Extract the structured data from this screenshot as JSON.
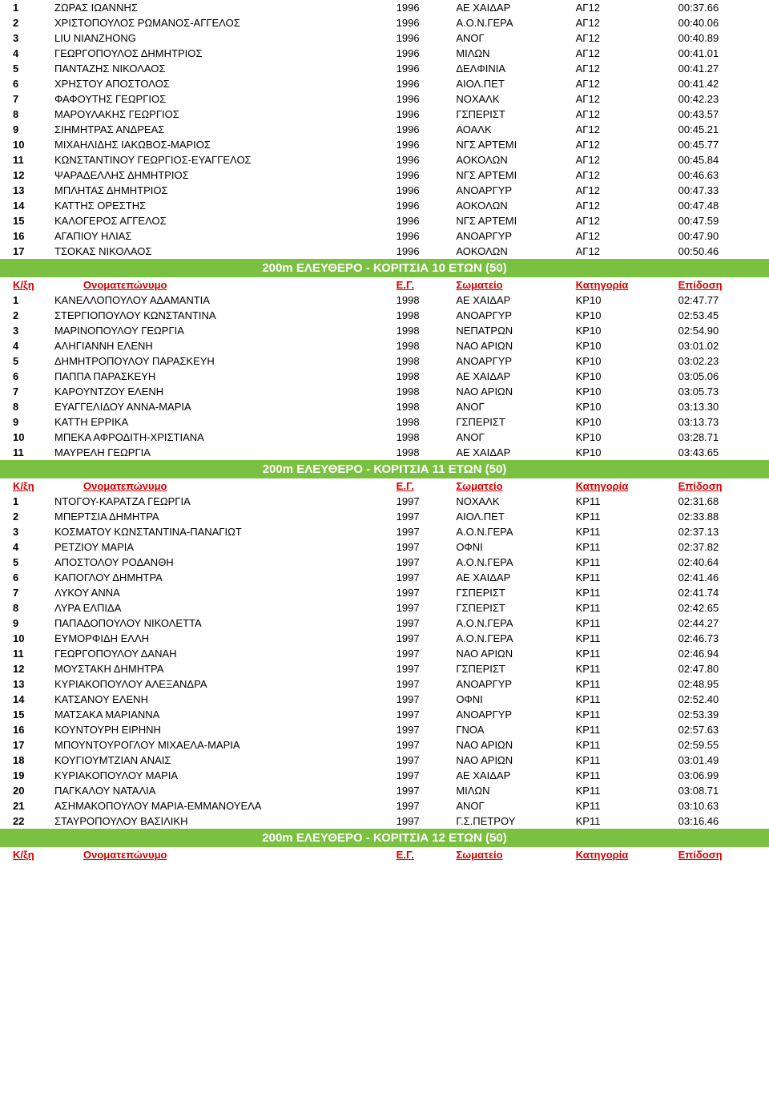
{
  "header_labels": {
    "rank": "Κ/ξη",
    "name": "Ονοματεπώνυμο",
    "year": "Ε.Γ.",
    "club": "Σωματείο",
    "category": "Κατηγορία",
    "time": "Επίδοση"
  },
  "styles": {
    "banner_bg": "#7ac142",
    "banner_fg": "#ffffff",
    "header_fg": "#d60000",
    "body_bg": "#ffffff",
    "body_fg": "#000000",
    "font_family": "Verdana, Arial, sans-serif",
    "font_size_pt": 10,
    "banner_font_size_pt": 11
  },
  "sections": [
    {
      "rows": [
        {
          "rank": "1",
          "name": "ΖΩΡΑΣ ΙΩΑΝΝΗΣ",
          "year": "1996",
          "club": "ΑΕ ΧΑΙΔΑΡ",
          "cat": "ΑΓ12",
          "time": "00:37.66"
        },
        {
          "rank": "2",
          "name": "ΧΡΙΣΤΟΠΟΥΛΟΣ ΡΩΜΑΝΟΣ-ΑΓΓΕΛΟΣ",
          "year": "1996",
          "club": "Α.Ο.Ν.ΓΕΡΑ",
          "cat": "ΑΓ12",
          "time": "00:40.06"
        },
        {
          "rank": "3",
          "name": "LIU NIANZHONG",
          "year": "1996",
          "club": "ΑΝΟΓ",
          "cat": "ΑΓ12",
          "time": "00:40.89"
        },
        {
          "rank": "4",
          "name": "ΓΕΩΡΓΟΠΟΥΛΟΣ ΔΗΜΗΤΡΙΟΣ",
          "year": "1996",
          "club": "ΜΙΛΩΝ",
          "cat": "ΑΓ12",
          "time": "00:41.01"
        },
        {
          "rank": "5",
          "name": "ΠΑΝΤΑΖΗΣ ΝΙΚΟΛΑΟΣ",
          "year": "1996",
          "club": "ΔΕΛΦΙΝΙΑ",
          "cat": "ΑΓ12",
          "time": "00:41.27"
        },
        {
          "rank": "6",
          "name": "ΧΡΗΣΤΟΥ ΑΠΟΣΤΟΛΟΣ",
          "year": "1996",
          "club": "ΑΙΟΛ.ΠΕΤ",
          "cat": "ΑΓ12",
          "time": "00:41.42"
        },
        {
          "rank": "7",
          "name": "ΦΑΦΟΥΤΗΣ ΓΕΩΡΓΙΟΣ",
          "year": "1996",
          "club": "ΝΟΧΑΛΚ",
          "cat": "ΑΓ12",
          "time": "00:42.23"
        },
        {
          "rank": "8",
          "name": "ΜΑΡΟΥΛΑΚΗΣ ΓΕΩΡΓΙΟΣ",
          "year": "1996",
          "club": "ΓΣΠΕΡΙΣΤ",
          "cat": "ΑΓ12",
          "time": "00:43.57"
        },
        {
          "rank": "9",
          "name": "ΣΙΗΜΗΤΡΑΣ ΑΝΔΡΕΑΣ",
          "year": "1996",
          "club": "ΑΟΑΛΚ",
          "cat": "ΑΓ12",
          "time": "00:45.21"
        },
        {
          "rank": "10",
          "name": "ΜΙΧΑΗΛΙΔΗΣ ΙΑΚΩΒΟΣ-ΜΑΡΙΟΣ",
          "year": "1996",
          "club": "ΝΓΣ ΑΡΤΕΜΙ",
          "cat": "ΑΓ12",
          "time": "00:45.77"
        },
        {
          "rank": "11",
          "name": "ΚΩΝΣΤΑΝΤΙΝΟΥ ΓΕΩΡΓΙΟΣ-ΕΥΑΓΓΕΛΟΣ",
          "year": "1996",
          "club": "ΑΟΚΟΛΩΝ",
          "cat": "ΑΓ12",
          "time": "00:45.84"
        },
        {
          "rank": "12",
          "name": "ΨΑΡΑΔΕΛΛΗΣ ΔΗΜΗΤΡΙΟΣ",
          "year": "1996",
          "club": "ΝΓΣ ΑΡΤΕΜΙ",
          "cat": "ΑΓ12",
          "time": "00:46.63"
        },
        {
          "rank": "13",
          "name": "ΜΠΛΗΤΑΣ ΔΗΜΗΤΡΙΟΣ",
          "year": "1996",
          "club": "ΑΝΟΑΡΓΥΡ",
          "cat": "ΑΓ12",
          "time": "00:47.33"
        },
        {
          "rank": "14",
          "name": "ΚΑΤΤΗΣ ΟΡΕΣΤΗΣ",
          "year": "1996",
          "club": "ΑΟΚΟΛΩΝ",
          "cat": "ΑΓ12",
          "time": "00:47.48"
        },
        {
          "rank": "15",
          "name": "ΚΑΛΟΓΕΡΟΣ ΑΓΓΕΛΟΣ",
          "year": "1996",
          "club": "ΝΓΣ ΑΡΤΕΜΙ",
          "cat": "ΑΓ12",
          "time": "00:47.59"
        },
        {
          "rank": "16",
          "name": "ΑΓΑΠΙΟΥ ΗΛΙΑΣ",
          "year": "1996",
          "club": "ΑΝΟΑΡΓΥΡ",
          "cat": "ΑΓ12",
          "time": "00:47.90"
        },
        {
          "rank": "17",
          "name": "ΤΣΟΚΑΣ ΝΙΚΟΛΑΟΣ",
          "year": "1996",
          "club": "ΑΟΚΟΛΩΝ",
          "cat": "ΑΓ12",
          "time": "00:50.46"
        }
      ]
    },
    {
      "banner": "200m ΕΛΕΥΘΕΡΟ - ΚΟΡΙΤΣΙΑ 10 ΕΤΩΝ  (50)",
      "show_header": true,
      "rows": [
        {
          "rank": "1",
          "name": "ΚΑΝΕΛΛΟΠΟΥΛΟΥ ΑΔΑΜΑΝΤΙΑ",
          "year": "1998",
          "club": "ΑΕ ΧΑΙΔΑΡ",
          "cat": "ΚΡ10",
          "time": "02:47.77"
        },
        {
          "rank": "2",
          "name": "ΣΤΕΡΓΙΟΠΟΥΛΟΥ ΚΩΝΣΤΑΝΤΙΝΑ",
          "year": "1998",
          "club": "ΑΝΟΑΡΓΥΡ",
          "cat": "ΚΡ10",
          "time": "02:53.45"
        },
        {
          "rank": "3",
          "name": "ΜΑΡΙΝΟΠΟΥΛΟΥ ΓΕΩΡΓΙΑ",
          "year": "1998",
          "club": "ΝΕΠΑΤΡΩΝ",
          "cat": "ΚΡ10",
          "time": "02:54.90"
        },
        {
          "rank": "4",
          "name": "ΑΛΗΓΙΑΝΝΗ ΕΛΕΝΗ",
          "year": "1998",
          "club": "ΝΑΟ ΑΡΙΩΝ",
          "cat": "ΚΡ10",
          "time": "03:01.02"
        },
        {
          "rank": "5",
          "name": "ΔΗΜΗΤΡΟΠΟΥΛΟΥ ΠΑΡΑΣΚΕΥΗ",
          "year": "1998",
          "club": "ΑΝΟΑΡΓΥΡ",
          "cat": "ΚΡ10",
          "time": "03:02.23"
        },
        {
          "rank": "6",
          "name": "ΠΑΠΠΑ ΠΑΡΑΣΚΕΥΗ",
          "year": "1998",
          "club": "ΑΕ ΧΑΙΔΑΡ",
          "cat": "ΚΡ10",
          "time": "03:05.06"
        },
        {
          "rank": "7",
          "name": "ΚΑΡΟΥΝΤΖΟΥ ΕΛΕΝΗ",
          "year": "1998",
          "club": "ΝΑΟ ΑΡΙΩΝ",
          "cat": "ΚΡ10",
          "time": "03:05.73"
        },
        {
          "rank": "8",
          "name": "ΕΥΑΓΓΕΛΙΔΟΥ ΑΝΝΑ-ΜΑΡΙΑ",
          "year": "1998",
          "club": "ΑΝΟΓ",
          "cat": "ΚΡ10",
          "time": "03:13.30"
        },
        {
          "rank": "9",
          "name": "ΚΑΤΤΗ ΕΡΡΙΚΑ",
          "year": "1998",
          "club": "ΓΣΠΕΡΙΣΤ",
          "cat": "ΚΡ10",
          "time": "03:13.73"
        },
        {
          "rank": "10",
          "name": "ΜΠΕΚΑ ΑΦΡΟΔΙΤΗ-ΧΡΙΣΤΙΑΝΑ",
          "year": "1998",
          "club": "ΑΝΟΓ",
          "cat": "ΚΡ10",
          "time": "03:28.71"
        },
        {
          "rank": "11",
          "name": "ΜΑΥΡΕΛΗ ΓΕΩΡΓΙΑ",
          "year": "1998",
          "club": "ΑΕ ΧΑΙΔΑΡ",
          "cat": "ΚΡ10",
          "time": "03:43.65"
        }
      ]
    },
    {
      "banner": "200m ΕΛΕΥΘΕΡΟ - ΚΟΡΙΤΣΙΑ 11 ΕΤΩΝ  (50)",
      "show_header": true,
      "rows": [
        {
          "rank": "1",
          "name": "ΝΤΟΓΟΥ-ΚΑΡΑΤΖΑ ΓΕΩΡΓΙΑ",
          "year": "1997",
          "club": "ΝΟΧΑΛΚ",
          "cat": "ΚΡ11",
          "time": "02:31.68"
        },
        {
          "rank": "2",
          "name": "ΜΠΕΡΤΣΙΑ ΔΗΜΗΤΡΑ",
          "year": "1997",
          "club": "ΑΙΟΛ.ΠΕΤ",
          "cat": "ΚΡ11",
          "time": "02:33.88"
        },
        {
          "rank": "3",
          "name": "ΚΟΣΜΑΤΟΥ ΚΩΝΣΤΑΝΤΙΝΑ-ΠΑΝΑΓΙΩΤ",
          "year": "1997",
          "club": "Α.Ο.Ν.ΓΕΡΑ",
          "cat": "ΚΡ11",
          "time": "02:37.13"
        },
        {
          "rank": "4",
          "name": "ΡΕΤΖΙΟΥ ΜΑΡΙΑ",
          "year": "1997",
          "club": "ΟΦΝΙ",
          "cat": "ΚΡ11",
          "time": "02:37.82"
        },
        {
          "rank": "5",
          "name": "ΑΠΟΣΤΟΛΟΥ ΡΟΔΑΝΘΗ",
          "year": "1997",
          "club": "Α.Ο.Ν.ΓΕΡΑ",
          "cat": "ΚΡ11",
          "time": "02:40.64"
        },
        {
          "rank": "6",
          "name": "ΚΑΠΟΓΛΟΥ ΔΗΜΗΤΡΑ",
          "year": "1997",
          "club": "ΑΕ ΧΑΙΔΑΡ",
          "cat": "ΚΡ11",
          "time": "02:41.46"
        },
        {
          "rank": "7",
          "name": "ΛΥΚΟΥ ΑΝΝΑ",
          "year": "1997",
          "club": "ΓΣΠΕΡΙΣΤ",
          "cat": "ΚΡ11",
          "time": "02:41.74"
        },
        {
          "rank": "8",
          "name": "ΛΥΡΑ ΕΛΠΙΔΑ",
          "year": "1997",
          "club": "ΓΣΠΕΡΙΣΤ",
          "cat": "ΚΡ11",
          "time": "02:42.65"
        },
        {
          "rank": "9",
          "name": "ΠΑΠΑΔΟΠΟΥΛΟΥ ΝΙΚΟΛΕΤΤΑ",
          "year": "1997",
          "club": "Α.Ο.Ν.ΓΕΡΑ",
          "cat": "ΚΡ11",
          "time": "02:44.27"
        },
        {
          "rank": "10",
          "name": "ΕΥΜΟΡΦΙΔΗ ΕΛΛΗ",
          "year": "1997",
          "club": "Α.Ο.Ν.ΓΕΡΑ",
          "cat": "ΚΡ11",
          "time": "02:46.73"
        },
        {
          "rank": "11",
          "name": "ΓΕΩΡΓΟΠΟΥΛΟΥ ΔΑΝΑΗ",
          "year": "1997",
          "club": "ΝΑΟ ΑΡΙΩΝ",
          "cat": "ΚΡ11",
          "time": "02:46.94"
        },
        {
          "rank": "12",
          "name": "ΜΟΥΣΤΑΚΗ ΔΗΜΗΤΡΑ",
          "year": "1997",
          "club": "ΓΣΠΕΡΙΣΤ",
          "cat": "ΚΡ11",
          "time": "02:47.80"
        },
        {
          "rank": "13",
          "name": "ΚΥΡΙΑΚΟΠΟΥΛΟΥ ΑΛΕΞΑΝΔΡΑ",
          "year": "1997",
          "club": "ΑΝΟΑΡΓΥΡ",
          "cat": "ΚΡ11",
          "time": "02:48.95"
        },
        {
          "rank": "14",
          "name": "ΚΑΤΣΑΝΟΥ ΕΛΕΝΗ",
          "year": "1997",
          "club": "ΟΦΝΙ",
          "cat": "ΚΡ11",
          "time": "02:52.40"
        },
        {
          "rank": "15",
          "name": "ΜΑΤΣΑΚΑ ΜΑΡΙΑΝΝΑ",
          "year": "1997",
          "club": "ΑΝΟΑΡΓΥΡ",
          "cat": "ΚΡ11",
          "time": "02:53.39"
        },
        {
          "rank": "16",
          "name": "ΚΟΥΝΤΟΥΡΗ ΕΙΡΗΝΗ",
          "year": "1997",
          "club": "ΓΝΟΑ",
          "cat": "ΚΡ11",
          "time": "02:57.63"
        },
        {
          "rank": "17",
          "name": "ΜΠΟΥΝΤΟΥΡΟΓΛΟΥ ΜΙΧΑΕΛΑ-ΜΑΡΙΑ",
          "year": "1997",
          "club": "ΝΑΟ ΑΡΙΩΝ",
          "cat": "ΚΡ11",
          "time": "02:59.55"
        },
        {
          "rank": "18",
          "name": "ΚΟΥΓΙΟΥΜΤΖΙΑΝ ΑΝΑΙΣ",
          "year": "1997",
          "club": "ΝΑΟ ΑΡΙΩΝ",
          "cat": "ΚΡ11",
          "time": "03:01.49"
        },
        {
          "rank": "19",
          "name": "ΚΥΡΙΑΚΟΠΟΥΛΟΥ ΜΑΡΙΑ",
          "year": "1997",
          "club": "ΑΕ ΧΑΙΔΑΡ",
          "cat": "ΚΡ11",
          "time": "03:06.99"
        },
        {
          "rank": "20",
          "name": "ΠΑΓΚΑΛΟΥ ΝΑΤΑΛΙΑ",
          "year": "1997",
          "club": "ΜΙΛΩΝ",
          "cat": "ΚΡ11",
          "time": "03:08.71"
        },
        {
          "rank": "21",
          "name": "ΑΣΗΜΑΚΟΠΟΥΛΟΥ ΜΑΡΙΑ-ΕΜΜΑΝΟΥΕΛΑ",
          "year": "1997",
          "club": "ΑΝΟΓ",
          "cat": "ΚΡ11",
          "time": "03:10.63"
        },
        {
          "rank": "22",
          "name": "ΣΤΑΥΡΟΠΟΥΛΟΥ ΒΑΣΙΛΙΚΗ",
          "year": "1997",
          "club": "Γ.Σ.ΠΕΤΡΟΥ",
          "cat": "ΚΡ11",
          "time": "03:16.46"
        }
      ]
    },
    {
      "banner": "200m ΕΛΕΥΘΕΡΟ - ΚΟΡΙΤΣΙΑ 12 ΕΤΩΝ  (50)",
      "show_header": true,
      "rows": []
    }
  ]
}
